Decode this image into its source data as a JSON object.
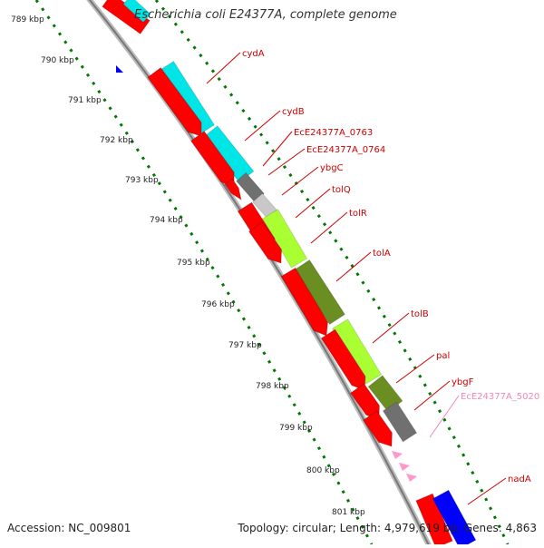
{
  "title": "Escherichia coli E24377A, complete genome",
  "footer": {
    "accession": "Accession: NC_009801",
    "summary": "Topology: circular; Length: 4,979,619 bp; Genes: 4,863"
  },
  "ticks": [
    "789 kbp",
    "790 kbp",
    "791 kbp",
    "792 kbp",
    "793 kbp",
    "794 kbp",
    "795 kbp",
    "796 kbp",
    "797 kbp",
    "798 kbp",
    "799 kbp",
    "800 kbp",
    "801 kbp"
  ],
  "gene_labels": [
    {
      "name": "cydA",
      "color": "#cc0000"
    },
    {
      "name": "cydB",
      "color": "#cc0000"
    },
    {
      "name": "EcE24377A_0763",
      "color": "#cc0000"
    },
    {
      "name": "EcE24377A_0764",
      "color": "#cc0000"
    },
    {
      "name": "ybgC",
      "color": "#cc0000"
    },
    {
      "name": "tolQ",
      "color": "#cc0000"
    },
    {
      "name": "tolR",
      "color": "#cc0000"
    },
    {
      "name": "tolA",
      "color": "#cc0000"
    },
    {
      "name": "tolB",
      "color": "#cc0000"
    },
    {
      "name": "pal",
      "color": "#cc0000"
    },
    {
      "name": "ybgF",
      "color": "#cc0000"
    },
    {
      "name": "EcE24377A_5020",
      "color": "#ee88bb"
    },
    {
      "name": "nadA",
      "color": "#cc0000"
    }
  ],
  "colors": {
    "cds_strand": "#ff0000",
    "cyan_feature": "#00e5e5",
    "gray_feature": "#707070",
    "light_gray_feature": "#c8c8c8",
    "yellowgreen_feature": "#aaff33",
    "olive_feature": "#6b8e23",
    "blue_feature": "#0000ff",
    "pink_feature": "#ff99cc",
    "backbone": "#999999",
    "tick_dots": "#007700"
  }
}
